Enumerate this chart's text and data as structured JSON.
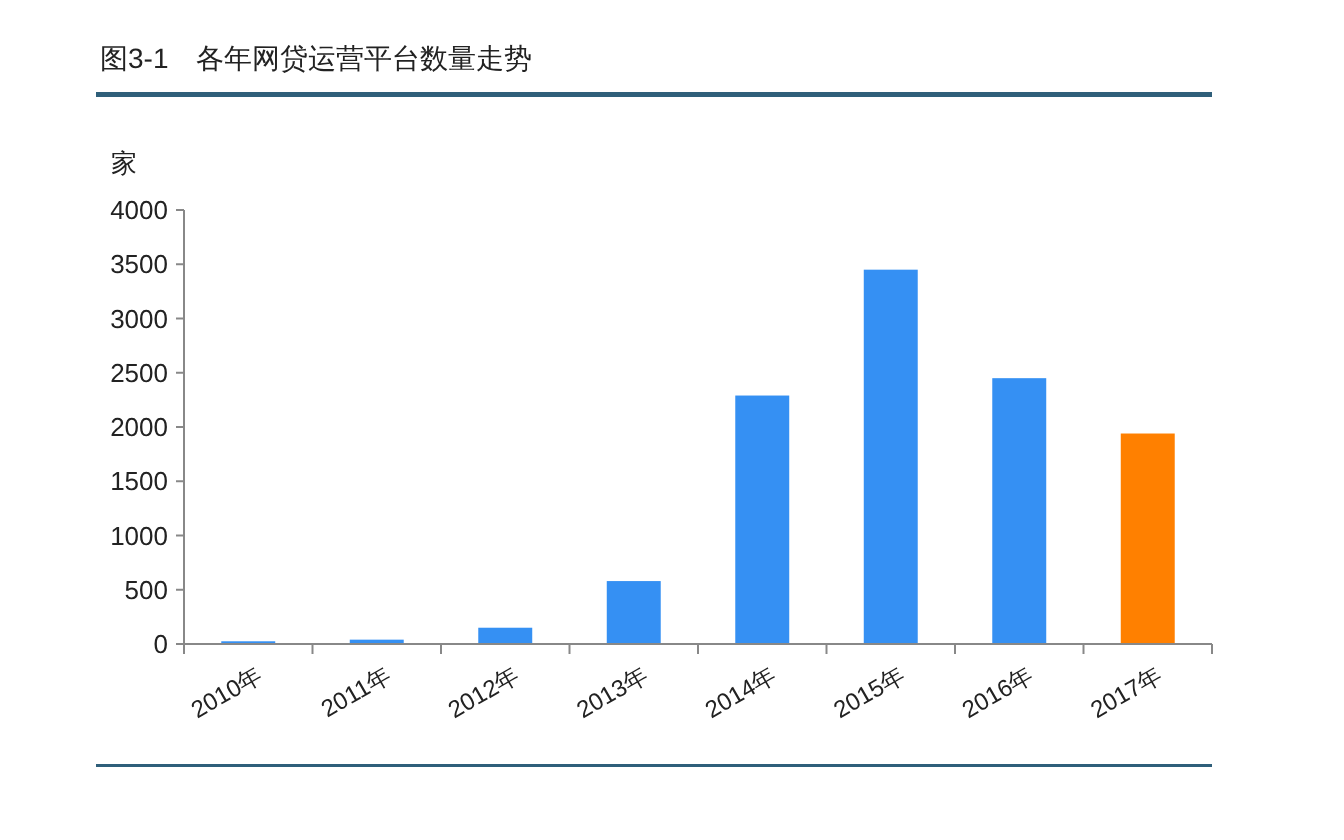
{
  "chart_data": {
    "type": "bar",
    "title": "图3-1　各年网贷运营平台数量走势",
    "ylabel": "家",
    "categories": [
      "2010年",
      "2011年",
      "2012年",
      "2013年",
      "2014年",
      "2015年",
      "2016年",
      "2017年"
    ],
    "values": [
      25,
      40,
      150,
      580,
      2290,
      3450,
      2450,
      1940
    ],
    "colors": [
      "#3590f3",
      "#3590f3",
      "#3590f3",
      "#3590f3",
      "#3590f3",
      "#3590f3",
      "#3590f3",
      "#ff8000"
    ],
    "ylim": [
      0,
      4000
    ],
    "yticks": [
      0,
      500,
      1000,
      1500,
      2000,
      2500,
      3000,
      3500,
      4000
    ],
    "grid": false
  }
}
